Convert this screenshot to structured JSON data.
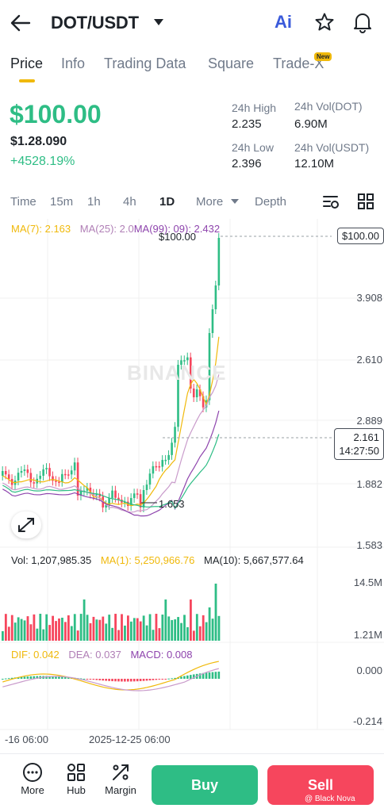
{
  "header": {
    "pair": "DOT/USDT",
    "ai_label": "Ai"
  },
  "tabs": [
    {
      "label": "Price",
      "active": true
    },
    {
      "label": "Info"
    },
    {
      "label": "Trading Data"
    },
    {
      "label": "Square"
    },
    {
      "label": "Trade-X",
      "badge": "New"
    }
  ],
  "ticker": {
    "price": "$100.00",
    "price_sub": "$1.28.090",
    "change": "+4528.19%",
    "high_label": "24h High",
    "high_value": "2.235",
    "low_label": "24h Low",
    "low_value": "2.396",
    "vol_base_label": "24h Vol(DOT)",
    "vol_base_value": "6.90M",
    "vol_quote_label": "24h Vol(USDT)",
    "vol_quote_value": "12.10M"
  },
  "timeframes": {
    "items": [
      "Time",
      "15m",
      "1h",
      "4h",
      "1D",
      "More",
      "Depth"
    ],
    "active": "1D"
  },
  "chart_data": {
    "type": "candlestick",
    "ma_legend": {
      "ma7": "MA(7): 2.163",
      "ma25": "MA(25): 2.0",
      "ma99": "MA(99): 09): 2.432"
    },
    "price_axis": [
      "$100.00",
      "3.908",
      "2.610",
      "2.889",
      "2.161",
      "1.882",
      "1.583"
    ],
    "last_price_tag": "$100.00",
    "current_tag": "2.161",
    "countdown": "14:27:50",
    "peak_label": "$100.00",
    "low_label": "1.653",
    "time_axis": [
      "-16 06:00",
      "2025-12-25 06:00"
    ],
    "volume": {
      "vol": "Vol: 1,207,985.35",
      "ma1": "MA(1): 5,250,966.76",
      "ma10": "MA(10): 5,667,577.64",
      "axis": [
        "14.5M",
        "1.21M"
      ]
    },
    "macd": {
      "dif": "DIF: 0.042",
      "dea": "DEA: 0.037",
      "macd": "MACD: 0.008",
      "axis": [
        "0.000",
        "-0.214"
      ]
    },
    "watermark": "BINANCE"
  },
  "bottom_nav": {
    "more": "More",
    "hub": "Hub",
    "margin": "Margin",
    "buy": "Buy",
    "sell": "Sell"
  },
  "credit": "@ Black Nova",
  "colors": {
    "up": "#2ebd85",
    "down": "#f6465d",
    "ma7": "#f0b90b",
    "ma25": "#c99bcb",
    "ma99": "#8e44ad",
    "accent": "#f0b90b"
  }
}
